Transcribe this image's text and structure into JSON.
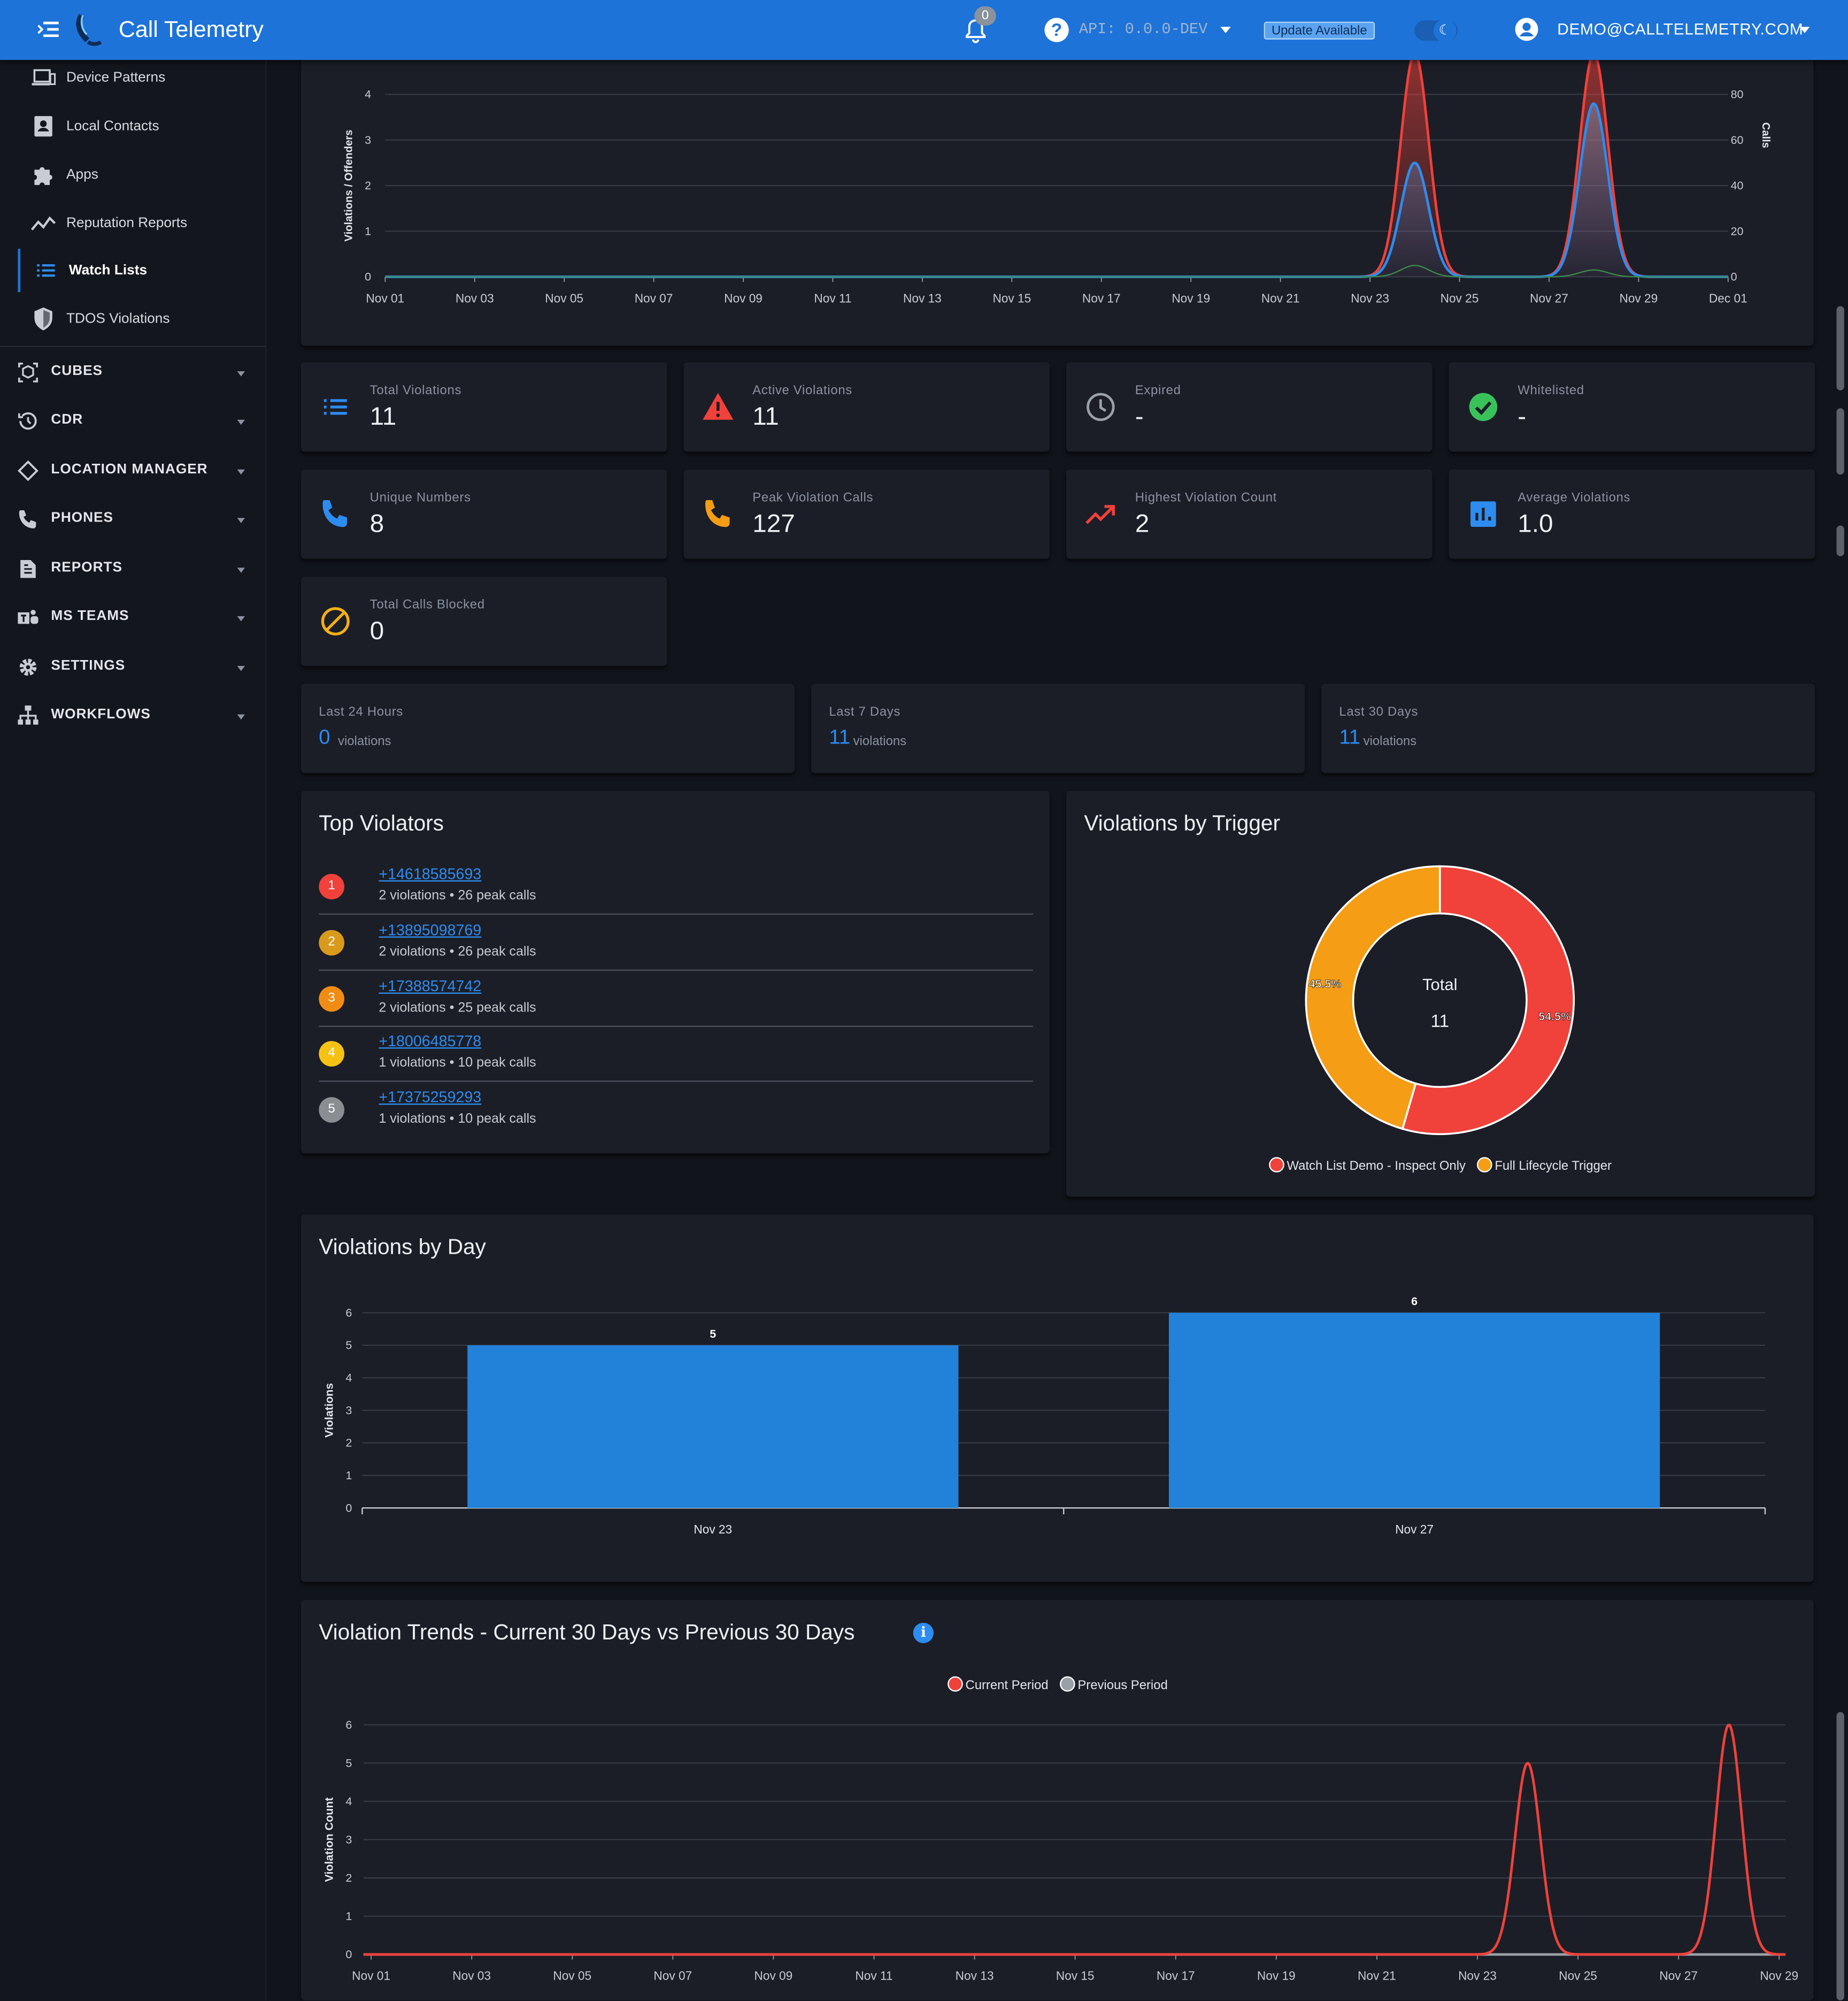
{
  "header": {
    "title": "Call Telemetry",
    "notifications": "0",
    "api": "API: 0.0.0-DEV",
    "update": "Update Available",
    "user": "DEMO@CALLTELEMETRY.COM"
  },
  "sidebar": {
    "sub_items": [
      {
        "label": "Device Patterns",
        "icon": "devices-icon"
      },
      {
        "label": "Local Contacts",
        "icon": "contacts-icon"
      },
      {
        "label": "Apps",
        "icon": "puzzle-icon"
      },
      {
        "label": "Reputation Reports",
        "icon": "trend-line-icon"
      },
      {
        "label": "Watch Lists",
        "icon": "list-icon",
        "active": true
      },
      {
        "label": "TDOS Violations",
        "icon": "shield-icon"
      }
    ],
    "sections": [
      {
        "label": "CUBES",
        "icon": "cube-icon"
      },
      {
        "label": "CDR",
        "icon": "history-icon"
      },
      {
        "label": "LOCATION MANAGER",
        "icon": "location-icon"
      },
      {
        "label": "PHONES",
        "icon": "phone-icon"
      },
      {
        "label": "REPORTS",
        "icon": "report-icon"
      },
      {
        "label": "MS TEAMS",
        "icon": "teams-icon"
      },
      {
        "label": "SETTINGS",
        "icon": "gear-icon"
      },
      {
        "label": "WORKFLOWS",
        "icon": "workflow-icon"
      }
    ]
  },
  "stats": [
    {
      "label": "Total Violations",
      "value": "11",
      "icon": "list-icon",
      "color": "#2d8cf0"
    },
    {
      "label": "Active Violations",
      "value": "11",
      "icon": "warning-icon",
      "color": "#f0413a"
    },
    {
      "label": "Expired",
      "value": "-",
      "icon": "clock-icon",
      "color": "#9aa0a8"
    },
    {
      "label": "Whitelisted",
      "value": "-",
      "icon": "check-circle-icon",
      "color": "#3ac25a"
    },
    {
      "label": "Unique Numbers",
      "value": "8",
      "icon": "phone-icon",
      "color": "#2d8cf0"
    },
    {
      "label": "Peak Violation Calls",
      "value": "127",
      "icon": "phone-icon",
      "color": "#f59d14"
    },
    {
      "label": "Highest Violation Count",
      "value": "2",
      "icon": "trending-up-icon",
      "color": "#f0413a"
    },
    {
      "label": "Average Violations",
      "value": "1.0",
      "icon": "bar-chart-icon",
      "color": "#2d8cf0"
    },
    {
      "label": "Total Calls Blocked",
      "value": "0",
      "icon": "block-icon",
      "color": "#f5b014"
    }
  ],
  "periods": [
    {
      "label": "Last 24 Hours",
      "value": "0",
      "unit": "violations"
    },
    {
      "label": "Last 7 Days",
      "value": "11",
      "unit": "violations"
    },
    {
      "label": "Last 30 Days",
      "value": "11",
      "unit": "violations"
    }
  ],
  "top_violators": {
    "title": "Top Violators",
    "items": [
      {
        "rank": "1",
        "number": "+14618585693",
        "detail": "2 violations • 26 peak calls",
        "color": "#f0413a"
      },
      {
        "rank": "2",
        "number": "+13895098769",
        "detail": "2 violations • 26 peak calls",
        "color": "#d99a1c"
      },
      {
        "rank": "3",
        "number": "+17388574742",
        "detail": "2 violations • 25 peak calls",
        "color": "#f08c14"
      },
      {
        "rank": "4",
        "number": "+18006485778",
        "detail": "1 violations • 10 peak calls",
        "color": "#f5c214"
      },
      {
        "rank": "5",
        "number": "+17375259293",
        "detail": "1 violations • 10 peak calls",
        "color": "#8a8d92"
      }
    ]
  },
  "chart_data": [
    {
      "type": "line",
      "ylabel": "Violations / Offenders",
      "y2label": "Calls",
      "ylim": [
        0,
        4
      ],
      "y2lim": [
        0,
        80
      ],
      "yticks": [
        "0",
        "1",
        "2",
        "3",
        "4"
      ],
      "y2ticks": [
        "0",
        "20",
        "40",
        "60",
        "80"
      ],
      "x": [
        "Nov 01",
        "Nov 03",
        "Nov 05",
        "Nov 07",
        "Nov 09",
        "Nov 11",
        "Nov 13",
        "Nov 15",
        "Nov 17",
        "Nov 19",
        "Nov 21",
        "Nov 23",
        "Nov 25",
        "Nov 27",
        "Nov 29",
        "Dec 01"
      ],
      "series": [
        {
          "peaks": [
            {
              "date": "Nov 24",
              "value": 98
            },
            {
              "date": "Nov 28",
              "value": 98
            }
          ],
          "axis": "right",
          "color": "#f0413a"
        },
        {
          "peaks": [
            {
              "date": "Nov 24",
              "value": 2.5
            },
            {
              "date": "Nov 28",
              "value": 3.8
            }
          ],
          "axis": "left",
          "color": "#2d8cf0"
        },
        {
          "peaks": [
            {
              "date": "Nov 24",
              "value": 0.25
            },
            {
              "date": "Nov 28",
              "value": 0.15
            }
          ],
          "axis": "left",
          "color": "#3a8a4a"
        }
      ]
    },
    {
      "type": "pie",
      "title": "Violations by Trigger",
      "center_label": "Total",
      "center_value": "11",
      "slices": [
        {
          "name": "Watch List Demo - Inspect Only",
          "value": 54.5,
          "label": "54.5%",
          "color": "#f0413a"
        },
        {
          "name": "Full Lifecycle Trigger",
          "value": 45.5,
          "label": "45.5%",
          "color": "#f59d14"
        }
      ]
    },
    {
      "type": "bar",
      "title": "Violations by Day",
      "ylabel": "Violations",
      "ylim": [
        0,
        6
      ],
      "yticks": [
        "0",
        "1",
        "2",
        "3",
        "4",
        "5",
        "6"
      ],
      "categories": [
        "Nov 23",
        "Nov 27"
      ],
      "values": [
        5,
        6
      ],
      "value_labels": [
        "5",
        "6"
      ],
      "color": "#2281d8"
    },
    {
      "type": "line",
      "title": "Violation Trends - Current 30 Days vs Previous 30 Days",
      "ylabel": "Violation Count",
      "ylim": [
        0,
        6
      ],
      "yticks": [
        "0",
        "1",
        "2",
        "3",
        "4",
        "5",
        "6"
      ],
      "x": [
        "Nov 01",
        "Nov 03",
        "Nov 05",
        "Nov 07",
        "Nov 09",
        "Nov 11",
        "Nov 13",
        "Nov 15",
        "Nov 17",
        "Nov 19",
        "Nov 21",
        "Nov 23",
        "Nov 25",
        "Nov 27",
        "Nov 29"
      ],
      "legend": [
        "Current Period",
        "Previous Period"
      ],
      "series": [
        {
          "name": "Current Period",
          "color": "#f0413a",
          "peaks": [
            {
              "date": "Nov 24",
              "value": 5
            },
            {
              "date": "Nov 28",
              "value": 6
            }
          ]
        },
        {
          "name": "Previous Period",
          "color": "#9aa0a8",
          "peaks": []
        }
      ]
    }
  ]
}
